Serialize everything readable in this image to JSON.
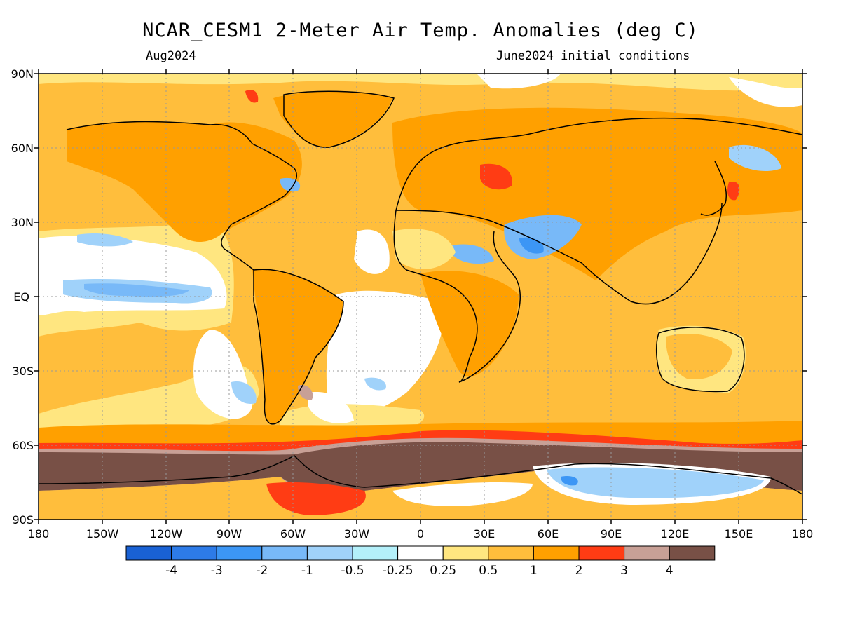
{
  "header": {
    "title": "NCAR_CESM1 2-Meter Air Temp. Anomalies (deg C)",
    "valid_month": "Aug2024",
    "init": "June2024 initial conditions"
  },
  "map": {
    "lat_labels": [
      "90N",
      "60N",
      "30N",
      "EQ",
      "30S",
      "60S",
      "90S"
    ],
    "lon_labels": [
      "180",
      "150W",
      "120W",
      "90W",
      "60W",
      "30W",
      "0",
      "30E",
      "60E",
      "90E",
      "120E",
      "150E",
      "180"
    ]
  },
  "colorbar": {
    "colors": [
      "#1961d4",
      "#2d7be8",
      "#3c96f5",
      "#78b9f8",
      "#a0d2fa",
      "#b4f0fa",
      "#ffffff",
      "#ffe680",
      "#ffbe3c",
      "#ffa000",
      "#ff3c14",
      "#c8a096",
      "#785046"
    ],
    "labels": [
      "-4",
      "-3",
      "-2",
      "-1",
      "-0.5",
      "-0.25",
      "0.25",
      "0.5",
      "1",
      "2",
      "3",
      "4"
    ]
  }
}
